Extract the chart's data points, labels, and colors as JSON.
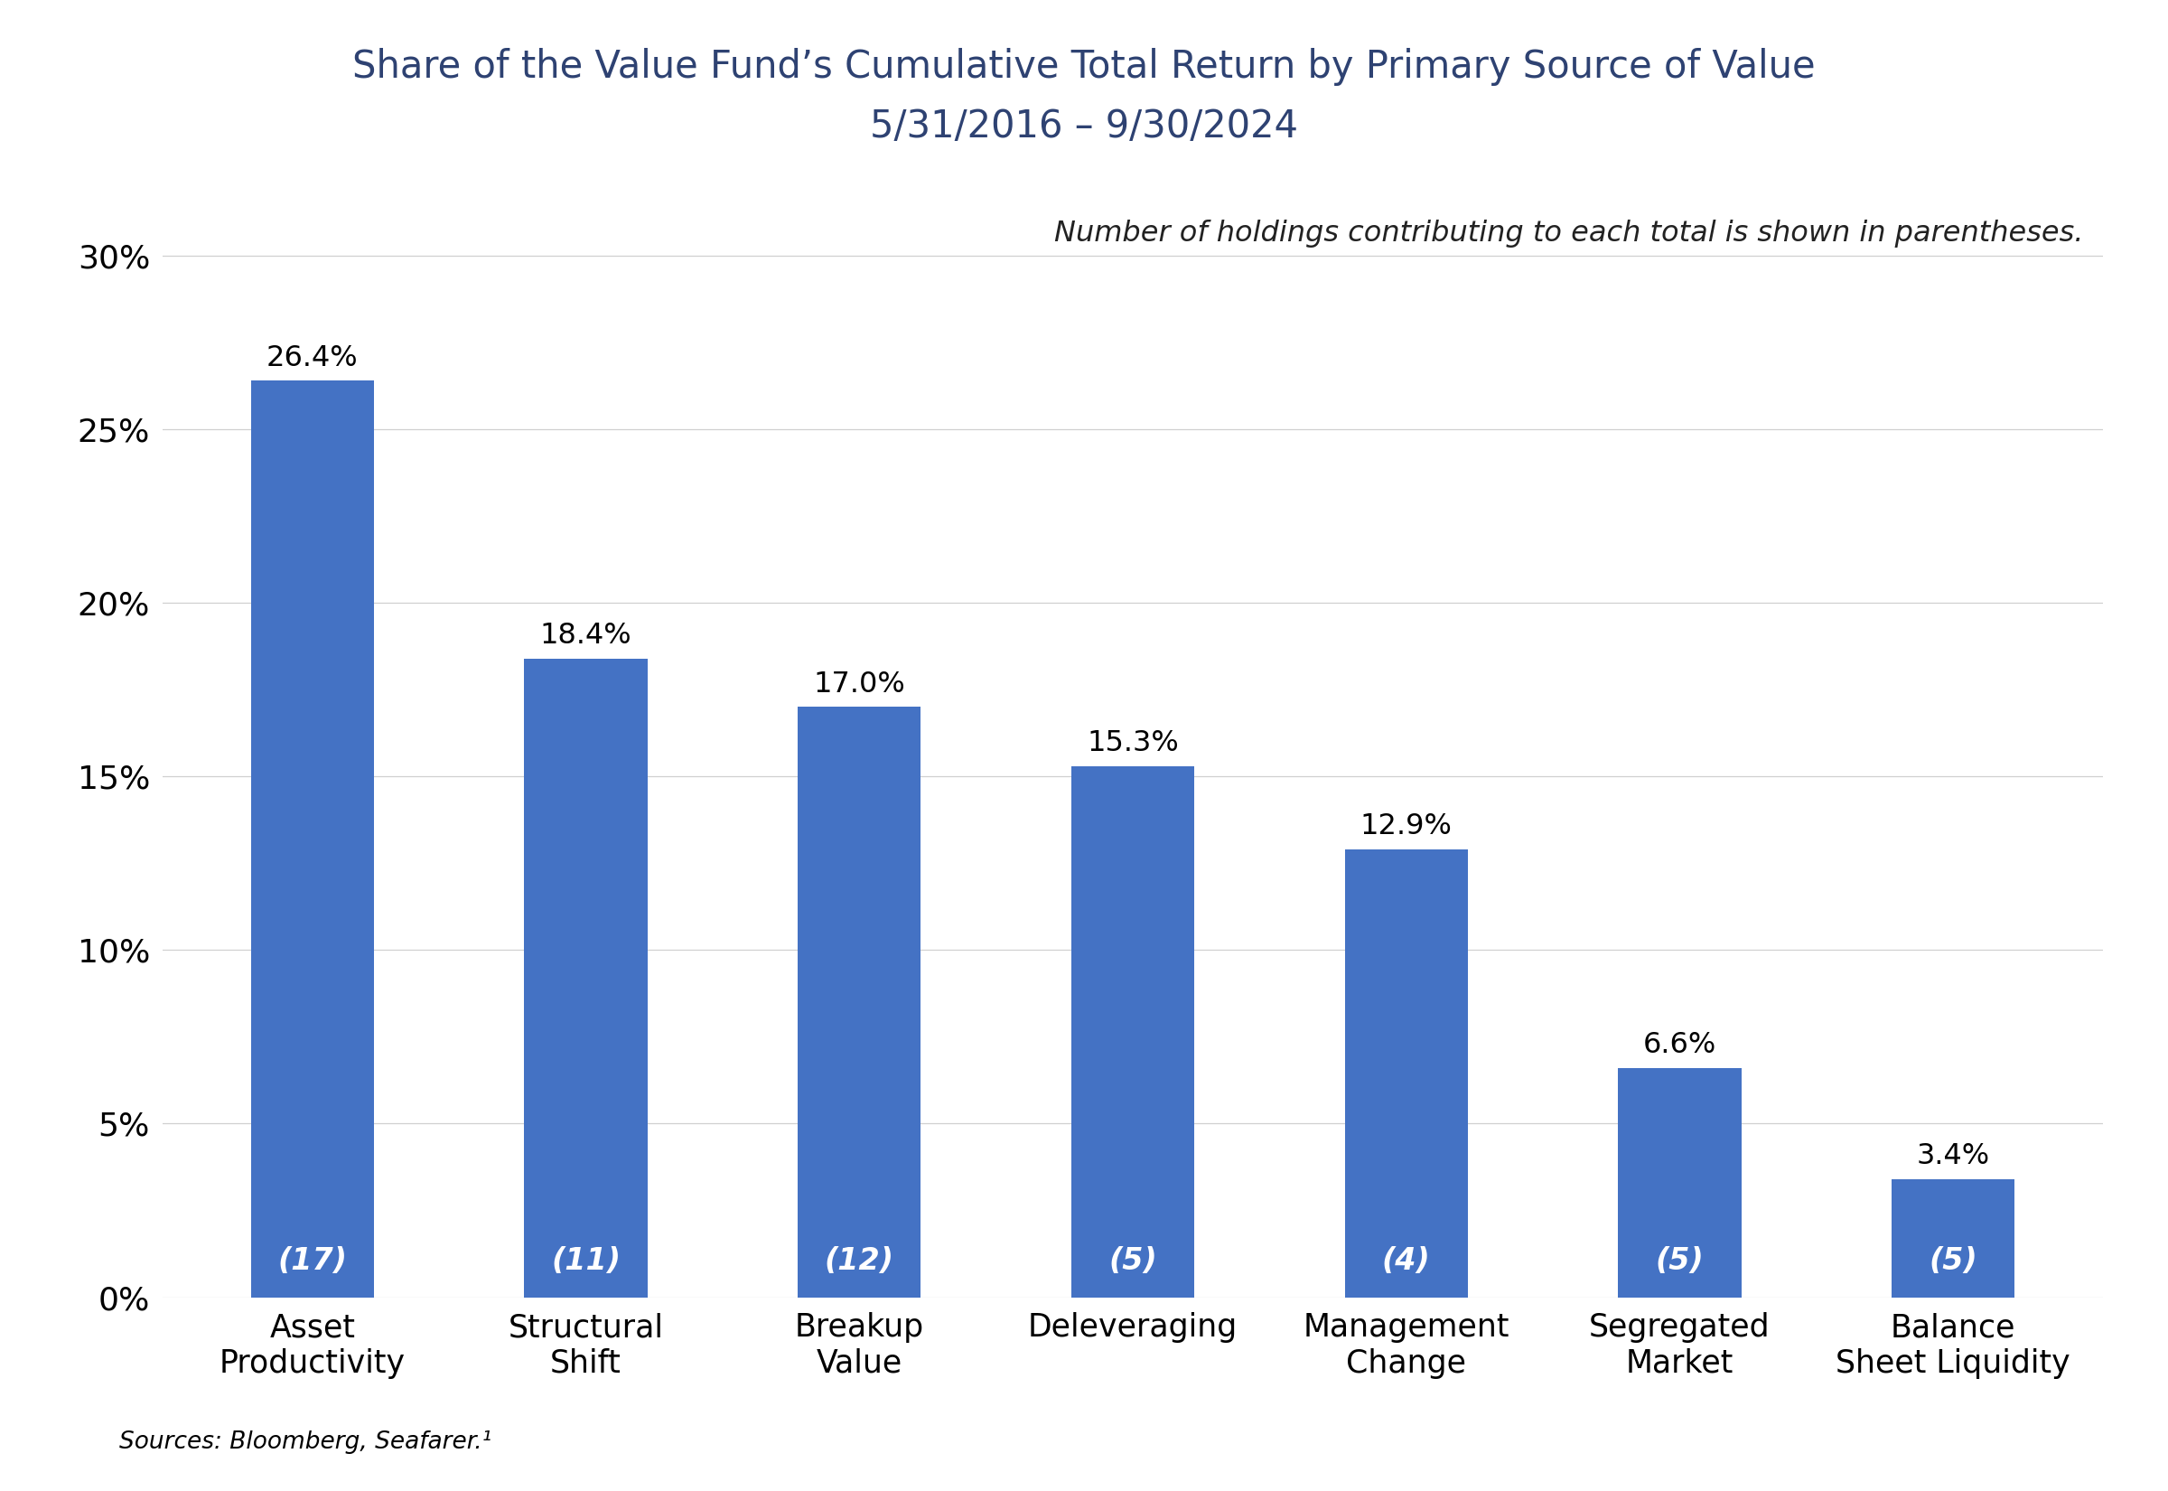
{
  "title_line1": "Share of the Value Fund’s Cumulative Total Return by Primary Source of Value",
  "title_line2": "5/31/2016 – 9/30/2024",
  "annotation": "Number of holdings contributing to each total is shown in parentheses.",
  "source_text": "Sources: Bloomberg, Seafarer.¹",
  "categories": [
    "Asset\nProductivity",
    "Structural\nShift",
    "Breakup\nValue",
    "Deleveraging",
    "Management\nChange",
    "Segregated\nMarket",
    "Balance\nSheet Liquidity"
  ],
  "values": [
    26.4,
    18.4,
    17.0,
    15.3,
    12.9,
    6.6,
    3.4
  ],
  "holdings": [
    "(17)",
    "(11)",
    "(12)",
    "(5)",
    "(4)",
    "(5)",
    "(5)"
  ],
  "value_labels": [
    "26.4%",
    "18.4%",
    "17.0%",
    "15.3%",
    "12.9%",
    "6.6%",
    "3.4%"
  ],
  "bar_color": "#4472C4",
  "title_color": "#2E4272",
  "yticks": [
    0,
    5,
    10,
    15,
    20,
    25,
    30
  ],
  "ylim": [
    0,
    32
  ],
  "background_color": "#ffffff",
  "grid_color": "#d0d0d0",
  "title_fontsize": 30,
  "subtitle_fontsize": 30,
  "label_fontsize": 25,
  "tick_fontsize": 26,
  "annotation_fontsize": 23,
  "source_fontsize": 19,
  "holding_fontsize": 24,
  "value_label_fontsize": 23
}
